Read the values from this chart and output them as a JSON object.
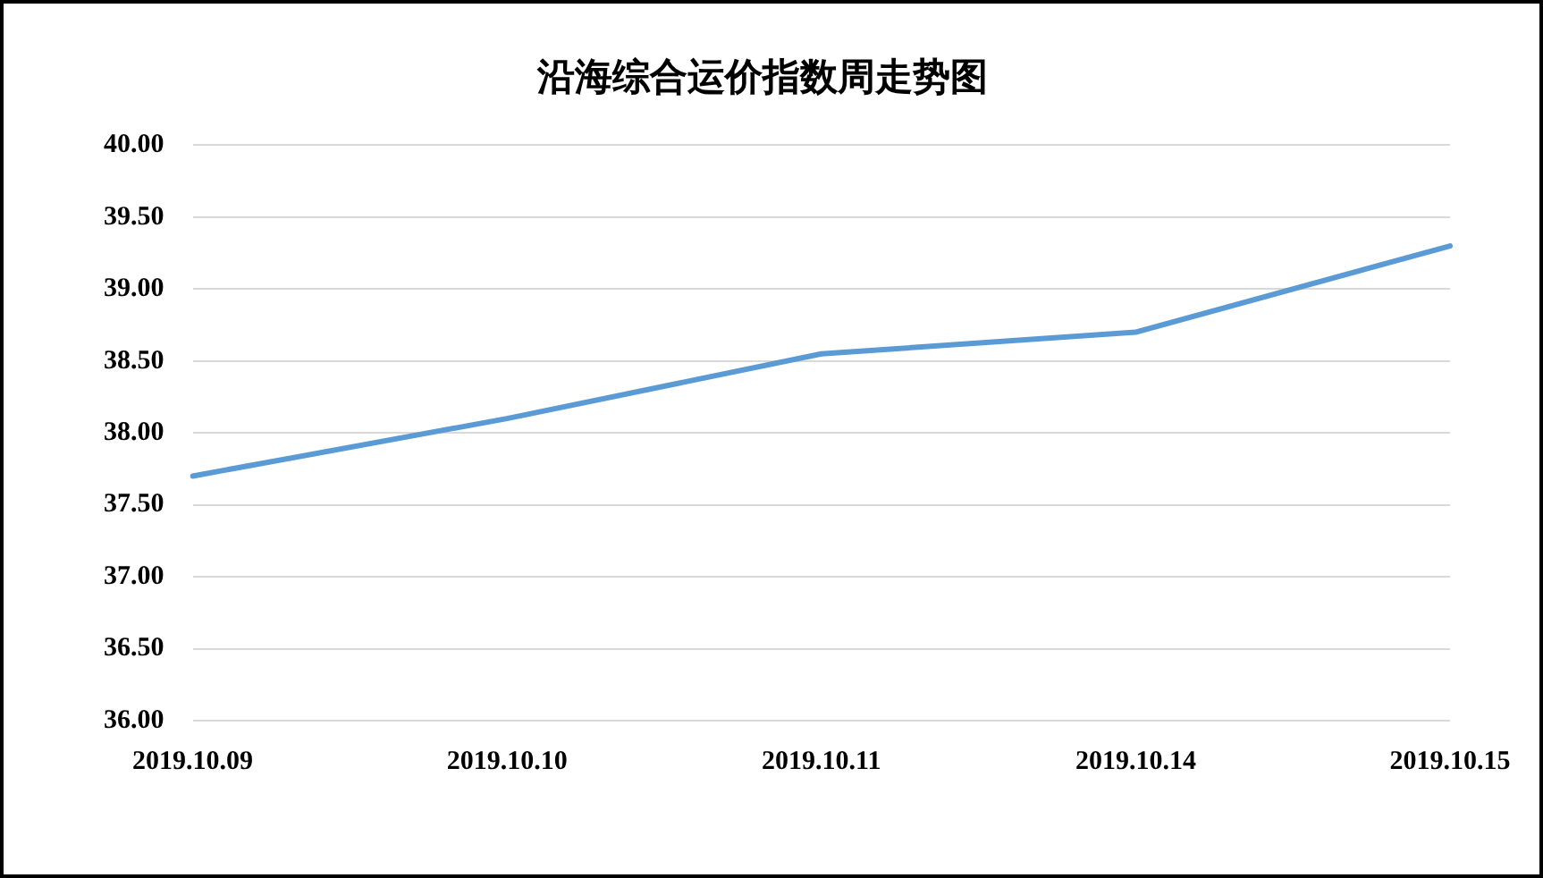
{
  "chart_data": {
    "type": "line",
    "title": "沿海综合运价指数周走势图",
    "categories": [
      "2019.10.09",
      "2019.10.10",
      "2019.10.11",
      "2019.10.14",
      "2019.10.15"
    ],
    "series": [
      {
        "color": "#5b9bd5",
        "values": [
          37.7,
          38.1,
          38.55,
          38.7,
          39.3
        ]
      }
    ],
    "ylim": [
      36,
      40
    ],
    "yticks": [
      {
        "value": 36,
        "label": "36.00"
      },
      {
        "value": 36.5,
        "label": "36.50"
      },
      {
        "value": 37,
        "label": "37.00"
      },
      {
        "value": 37.5,
        "label": "37.50"
      },
      {
        "value": 38,
        "label": "38.00"
      },
      {
        "value": 38.5,
        "label": "38.50"
      },
      {
        "value": 39,
        "label": "39.00"
      },
      {
        "value": 39.5,
        "label": "39.50"
      },
      {
        "value": 40,
        "label": "40.00"
      }
    ],
    "grid": "y",
    "legend": false,
    "marker": "none",
    "line_style": "solid"
  }
}
